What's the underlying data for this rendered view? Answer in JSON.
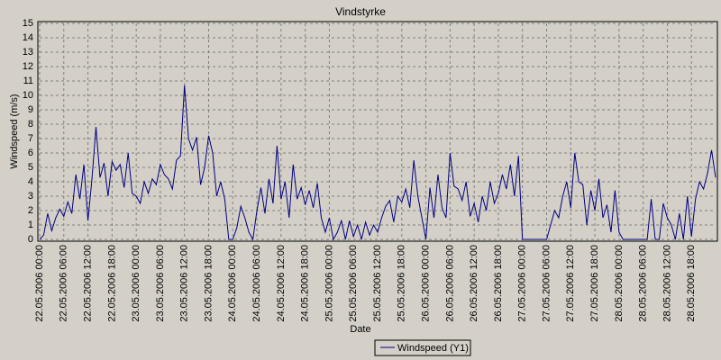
{
  "chart_data": {
    "type": "line",
    "title": "Vindstyrke",
    "x_label": "Date",
    "y_label": "Windspeed (m/s)",
    "legend": "bottom",
    "grid": true,
    "xlim": [
      "22.05.2006 00:00",
      "29.05.2006 00:00"
    ],
    "xticks": [
      "22.05.2006 00:00",
      "22.05.2006 06:00",
      "22.05.2006 12:00",
      "22.05.2006 18:00",
      "23.05.2006 00:00",
      "23.05.2006 06:00",
      "23.05.2006 12:00",
      "23.05.2006 18:00",
      "24.05.2006 00:00",
      "24.05.2006 06:00",
      "24.05.2006 12:00",
      "24.05.2006 18:00",
      "25.05.2006 00:00",
      "25.05.2006 06:00",
      "25.05.2006 12:00",
      "25.05.2006 18:00",
      "26.05.2006 00:00",
      "26.05.2006 06:00",
      "26.05.2006 12:00",
      "26.05.2006 18:00",
      "27.05.2006 00:00",
      "27.05.2006 06:00",
      "27.05.2006 12:00",
      "27.05.2006 18:00",
      "28.05.2006 00:00",
      "28.05.2006 06:00",
      "28.05.2006 12:00",
      "28.05.2006 18:00"
    ],
    "ylim": [
      0,
      15
    ],
    "yticks": [
      0,
      1,
      2,
      3,
      4,
      5,
      6,
      7,
      8,
      9,
      10,
      11,
      12,
      13,
      14,
      15
    ],
    "x": [
      "22.05.2006 00:00",
      "22.05.2006 01:00",
      "22.05.2006 02:00",
      "22.05.2006 03:00",
      "22.05.2006 04:00",
      "22.05.2006 05:00",
      "22.05.2006 06:00",
      "22.05.2006 07:00",
      "22.05.2006 08:00",
      "22.05.2006 09:00",
      "22.05.2006 10:00",
      "22.05.2006 11:00",
      "22.05.2006 12:00",
      "22.05.2006 13:00",
      "22.05.2006 14:00",
      "22.05.2006 15:00",
      "22.05.2006 16:00",
      "22.05.2006 17:00",
      "22.05.2006 18:00",
      "22.05.2006 19:00",
      "22.05.2006 20:00",
      "22.05.2006 21:00",
      "22.05.2006 22:00",
      "22.05.2006 23:00",
      "23.05.2006 00:00",
      "23.05.2006 01:00",
      "23.05.2006 02:00",
      "23.05.2006 03:00",
      "23.05.2006 04:00",
      "23.05.2006 05:00",
      "23.05.2006 06:00",
      "23.05.2006 07:00",
      "23.05.2006 08:00",
      "23.05.2006 09:00",
      "23.05.2006 10:00",
      "23.05.2006 11:00",
      "23.05.2006 12:00",
      "23.05.2006 13:00",
      "23.05.2006 14:00",
      "23.05.2006 15:00",
      "23.05.2006 16:00",
      "23.05.2006 17:00",
      "23.05.2006 18:00",
      "23.05.2006 19:00",
      "23.05.2006 20:00",
      "23.05.2006 21:00",
      "23.05.2006 22:00",
      "23.05.2006 23:00",
      "24.05.2006 00:00",
      "24.05.2006 01:00",
      "24.05.2006 02:00",
      "24.05.2006 03:00",
      "24.05.2006 04:00",
      "24.05.2006 05:00",
      "24.05.2006 06:00",
      "24.05.2006 07:00",
      "24.05.2006 08:00",
      "24.05.2006 09:00",
      "24.05.2006 10:00",
      "24.05.2006 11:00",
      "24.05.2006 12:00",
      "24.05.2006 13:00",
      "24.05.2006 14:00",
      "24.05.2006 15:00",
      "24.05.2006 16:00",
      "24.05.2006 17:00",
      "24.05.2006 18:00",
      "24.05.2006 19:00",
      "24.05.2006 20:00",
      "24.05.2006 21:00",
      "24.05.2006 22:00",
      "24.05.2006 23:00",
      "25.05.2006 00:00",
      "25.05.2006 01:00",
      "25.05.2006 02:00",
      "25.05.2006 03:00",
      "25.05.2006 04:00",
      "25.05.2006 05:00",
      "25.05.2006 06:00",
      "25.05.2006 07:00",
      "25.05.2006 08:00",
      "25.05.2006 09:00",
      "25.05.2006 10:00",
      "25.05.2006 11:00",
      "25.05.2006 12:00",
      "25.05.2006 13:00",
      "25.05.2006 14:00",
      "25.05.2006 15:00",
      "25.05.2006 16:00",
      "25.05.2006 17:00",
      "25.05.2006 18:00",
      "25.05.2006 19:00",
      "25.05.2006 20:00",
      "25.05.2006 21:00",
      "25.05.2006 22:00",
      "25.05.2006 23:00",
      "26.05.2006 00:00",
      "26.05.2006 01:00",
      "26.05.2006 02:00",
      "26.05.2006 03:00",
      "26.05.2006 04:00",
      "26.05.2006 05:00",
      "26.05.2006 06:00",
      "26.05.2006 07:00",
      "26.05.2006 08:00",
      "26.05.2006 09:00",
      "26.05.2006 10:00",
      "26.05.2006 11:00",
      "26.05.2006 12:00",
      "26.05.2006 13:00",
      "26.05.2006 14:00",
      "26.05.2006 15:00",
      "26.05.2006 16:00",
      "26.05.2006 17:00",
      "26.05.2006 18:00",
      "26.05.2006 19:00",
      "26.05.2006 20:00",
      "26.05.2006 21:00",
      "26.05.2006 22:00",
      "26.05.2006 23:00",
      "27.05.2006 00:00",
      "27.05.2006 01:00",
      "27.05.2006 02:00",
      "27.05.2006 03:00",
      "27.05.2006 04:00",
      "27.05.2006 05:00",
      "27.05.2006 06:00",
      "27.05.2006 07:00",
      "27.05.2006 08:00",
      "27.05.2006 09:00",
      "27.05.2006 10:00",
      "27.05.2006 11:00",
      "27.05.2006 12:00",
      "27.05.2006 13:00",
      "27.05.2006 14:00",
      "27.05.2006 15:00",
      "27.05.2006 16:00",
      "27.05.2006 17:00",
      "27.05.2006 18:00",
      "27.05.2006 19:00",
      "27.05.2006 20:00",
      "27.05.2006 21:00",
      "27.05.2006 22:00",
      "27.05.2006 23:00",
      "28.05.2006 00:00",
      "28.05.2006 01:00",
      "28.05.2006 02:00",
      "28.05.2006 03:00",
      "28.05.2006 04:00",
      "28.05.2006 05:00",
      "28.05.2006 06:00",
      "28.05.2006 07:00",
      "28.05.2006 08:00",
      "28.05.2006 09:00",
      "28.05.2006 10:00",
      "28.05.2006 11:00",
      "28.05.2006 12:00",
      "28.05.2006 13:00",
      "28.05.2006 14:00",
      "28.05.2006 15:00",
      "28.05.2006 16:00",
      "28.05.2006 17:00",
      "28.05.2006 18:00",
      "28.05.2006 19:00",
      "28.05.2006 20:00",
      "28.05.2006 21:00",
      "28.05.2006 22:00",
      "28.05.2006 23:00",
      "29.05.2006 00:00"
    ],
    "series": [
      {
        "name": "Windspeed (Y1)",
        "color": "#000080",
        "values": [
          0,
          0.3,
          1.8,
          0.6,
          1.5,
          2.1,
          1.6,
          2.6,
          1.8,
          4.5,
          2.8,
          5.2,
          1.3,
          4.2,
          7.8,
          4.3,
          5.3,
          3,
          5.4,
          4.8,
          5.2,
          3.6,
          6,
          3.2,
          3,
          2.5,
          4,
          3.2,
          4.2,
          3.8,
          5.2,
          4.5,
          4.2,
          3.5,
          5.5,
          5.8,
          10.7,
          7,
          6.2,
          7.1,
          3.8,
          5,
          7.2,
          6,
          3,
          4,
          2.8,
          0,
          0,
          0.8,
          2.3,
          1.5,
          0.5,
          0,
          2,
          3.6,
          1.8,
          4.2,
          2.5,
          6.5,
          2.8,
          4,
          1.5,
          5.2,
          2.8,
          3.6,
          2.4,
          3.4,
          2.2,
          3.9,
          1.5,
          0.5,
          1.5,
          0,
          0.5,
          1.3,
          0,
          1.3,
          0.2,
          1,
          0,
          1.2,
          0.3,
          1,
          0.5,
          1.5,
          2.3,
          2.7,
          1.2,
          3,
          2.6,
          3.5,
          2.2,
          5.5,
          3,
          1.5,
          0,
          3.6,
          1.5,
          4.5,
          2.2,
          1.5,
          6,
          3.7,
          3.5,
          2.7,
          4,
          1.6,
          2.5,
          1.2,
          3,
          2,
          4,
          2.5,
          3.2,
          4.5,
          3.5,
          5.2,
          3,
          5.8,
          0,
          0,
          0,
          0,
          0,
          0,
          0,
          1,
          2,
          1.5,
          3,
          4,
          2.2,
          6,
          4,
          3.8,
          1,
          3.4,
          2,
          4.2,
          1.5,
          2.4,
          0.5,
          3.4,
          0.5,
          0,
          0,
          0,
          0,
          0,
          0,
          0,
          2.8,
          0,
          0,
          2.5,
          1.5,
          1,
          0,
          1.8,
          0,
          3,
          0.2,
          2.8,
          4,
          3.5,
          4.6,
          6.2,
          4.3
        ]
      }
    ]
  }
}
